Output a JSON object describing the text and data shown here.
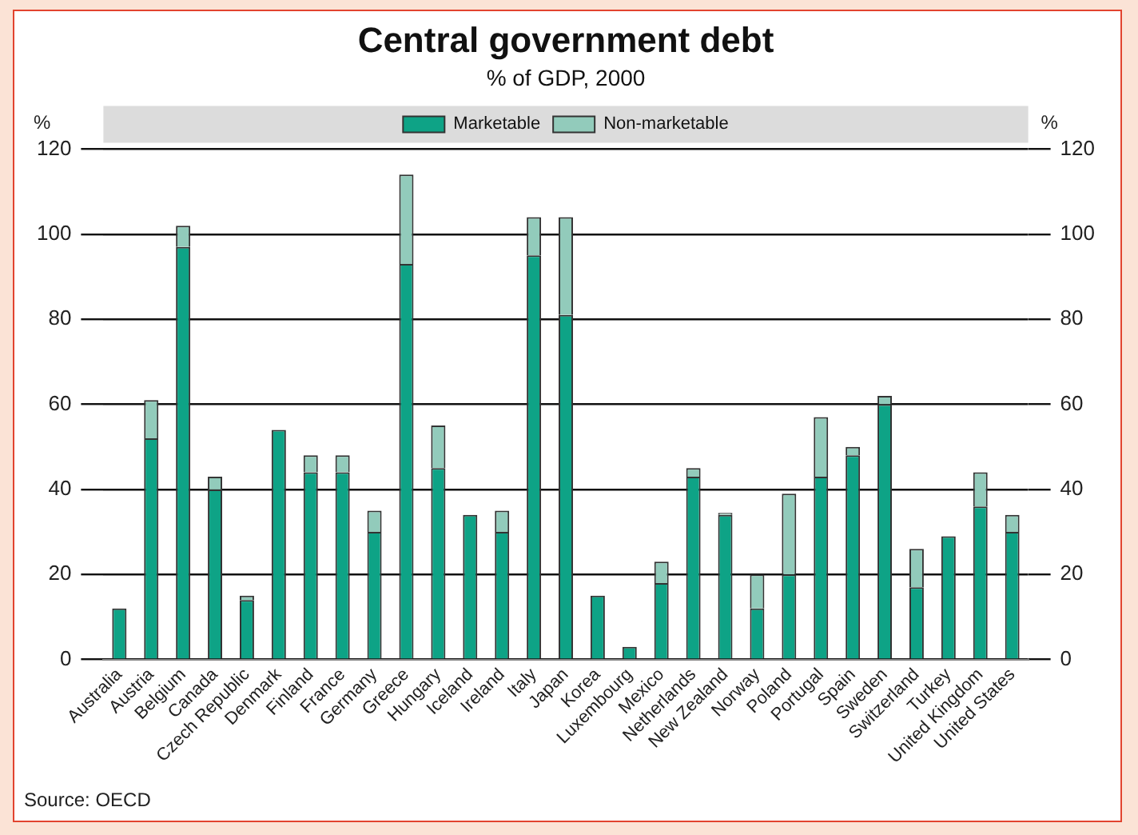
{
  "chart_data": {
    "type": "bar",
    "title": "Central government debt",
    "subtitle": "% of GDP, 2000",
    "ylabel": "%",
    "y2label": "%",
    "categories": [
      "Australia",
      "Austria",
      "Belgium",
      "Canada",
      "Czech Republic",
      "Denmark",
      "Finland",
      "France",
      "Germany",
      "Greece",
      "Hungary",
      "Iceland",
      "Ireland",
      "Italy",
      "Japan",
      "Korea",
      "Luxembourg",
      "Mexico",
      "Netherlands",
      "New Zealand",
      "Norway",
      "Poland",
      "Portugal",
      "Spain",
      "Sweden",
      "Switzerland",
      "Turkey",
      "United Kingdom",
      "United States"
    ],
    "series": [
      {
        "name": "Marketable",
        "color": "#0ea386",
        "values": [
          12,
          52,
          97,
          40,
          14,
          54,
          44,
          44,
          30,
          93,
          45,
          34,
          30,
          95,
          81,
          15,
          3,
          18,
          43,
          34,
          12,
          20,
          43,
          48,
          60,
          17,
          29,
          36,
          30
        ]
      },
      {
        "name": "Non-marketable",
        "color": "#92cbbb",
        "values": [
          0,
          9,
          5,
          3,
          1,
          0,
          4,
          4,
          5,
          21,
          10,
          0,
          5,
          9,
          23,
          0,
          0,
          5,
          2,
          0.5,
          8,
          19,
          14,
          2,
          2,
          9,
          0,
          8,
          4
        ]
      }
    ],
    "stacked": true,
    "ylim": [
      0,
      120
    ],
    "yticks": [
      0,
      20,
      40,
      60,
      80,
      100,
      120
    ],
    "y2lim": [
      0,
      120
    ],
    "y2ticks": [
      0,
      20,
      40,
      60,
      80,
      100,
      120
    ],
    "grid": "y",
    "legend": "top",
    "annotations": [
      "Source: OECD"
    ]
  }
}
